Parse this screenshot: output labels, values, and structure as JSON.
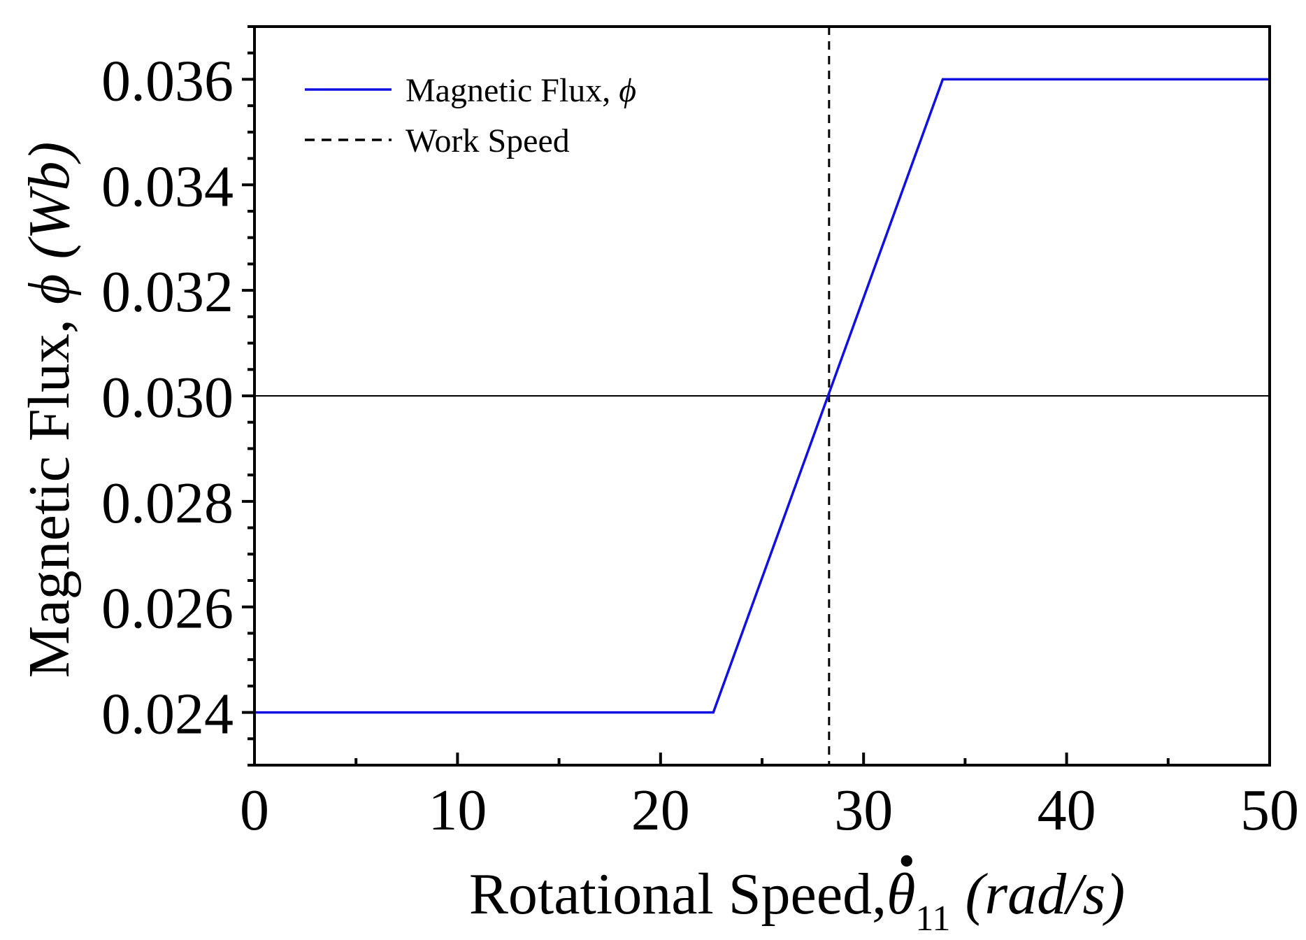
{
  "chart_data": {
    "type": "line",
    "title": "",
    "xlabel": {
      "main": "Rotational Speed,",
      "symbol": "θ",
      "dot": "•",
      "subscript": "11",
      "unit": "(rad/s)"
    },
    "ylabel": {
      "main": "Magnetic Flux,",
      "symbol": "ϕ",
      "unit": "(Wb)"
    },
    "xlim": [
      0,
      50
    ],
    "ylim": [
      0.023,
      0.037
    ],
    "x_ticks": [
      0,
      10,
      20,
      30,
      40,
      50
    ],
    "x_tick_labels": [
      "0",
      "10",
      "20",
      "30",
      "40",
      "50"
    ],
    "y_ticks": [
      0.024,
      0.026,
      0.028,
      0.03,
      0.032,
      0.034,
      0.036
    ],
    "y_tick_labels": [
      "0.024",
      "0.026",
      "0.028",
      "0.030",
      "0.032",
      "0.034",
      "0.036"
    ],
    "series": [
      {
        "name": "Magnetic Flux, ϕ",
        "color": "#1010e0",
        "style": "solid",
        "x": [
          0,
          22.6,
          33.9,
          50
        ],
        "y": [
          0.024,
          0.024,
          0.036,
          0.036
        ]
      }
    ],
    "reference_lines": [
      {
        "name": "Work Speed",
        "orientation": "vertical",
        "value": 28.3,
        "color": "#000000",
        "style": "dashed"
      },
      {
        "name": "",
        "orientation": "horizontal",
        "value": 0.03,
        "color": "#000000",
        "style": "solid"
      }
    ],
    "legend": {
      "position": "top-left",
      "entries": [
        {
          "label": "Magnetic Flux, ",
          "symbol": "ϕ",
          "color": "#1010e0",
          "style": "solid"
        },
        {
          "label": "Work Speed",
          "symbol": "",
          "color": "#000000",
          "style": "dashed"
        }
      ]
    },
    "grid": false
  }
}
